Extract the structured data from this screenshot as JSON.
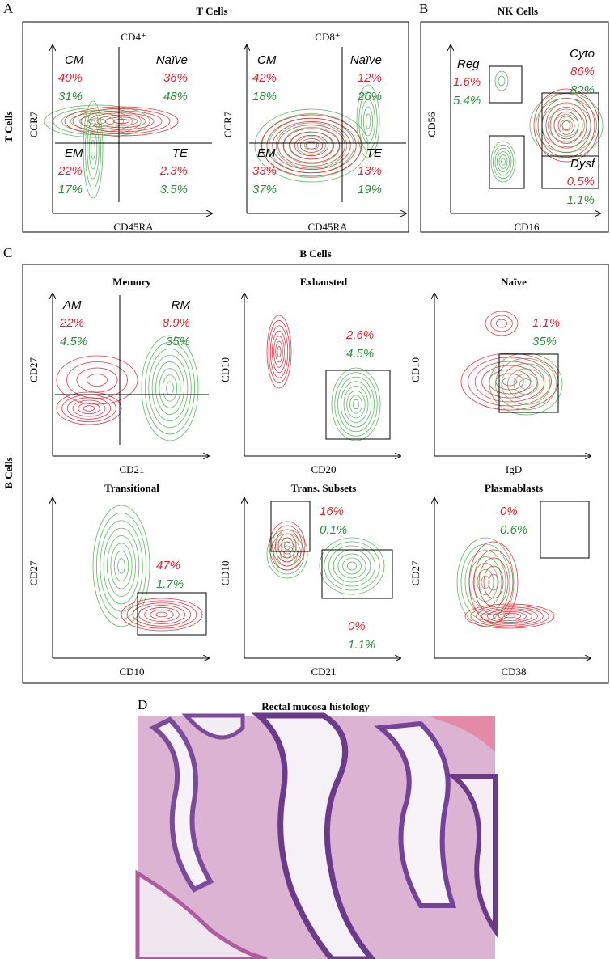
{
  "panel_a": {
    "label": "A",
    "title": "T Cells",
    "row_label": "T Cells",
    "plots": [
      {
        "heading": "CD4⁺",
        "y_axis": "CCR7",
        "x_axis": "CD45RA",
        "gates": [
          {
            "name": "CM",
            "values": [
              "40%",
              "31%"
            ]
          },
          {
            "name": "Naïve",
            "values": [
              "36%",
              "48%"
            ]
          },
          {
            "name": "EM",
            "values": [
              "22%",
              "17%"
            ]
          },
          {
            "name": "TE",
            "values": [
              "2.3%",
              "3.5%"
            ]
          }
        ]
      },
      {
        "heading": "CD8⁺",
        "y_axis": "CCR7",
        "x_axis": "CD45RA",
        "gates": [
          {
            "name": "CM",
            "values": [
              "42%",
              "18%"
            ]
          },
          {
            "name": "Naïve",
            "values": [
              "12%",
              "26%"
            ]
          },
          {
            "name": "EM",
            "values": [
              "33%",
              "37%"
            ]
          },
          {
            "name": "TE",
            "values": [
              "13%",
              "19%"
            ]
          }
        ]
      }
    ]
  },
  "panel_b": {
    "label": "B",
    "title": "NK Cells",
    "plots": [
      {
        "y_axis": "CD56",
        "x_axis": "CD16",
        "gates": [
          {
            "name": "Reg",
            "values": [
              "1.6%",
              "5.4%"
            ]
          },
          {
            "name": "Cyto",
            "values": [
              "86%",
              "82%"
            ]
          },
          {
            "name": "Dysf",
            "values": [
              "0.5%",
              "1.1%"
            ]
          }
        ]
      }
    ]
  },
  "panel_c": {
    "label": "C",
    "title": "B Cells",
    "row_label": "B Cells",
    "plots": [
      {
        "heading": "Memory",
        "y_axis": "CD27",
        "x_axis": "CD21",
        "gates": [
          {
            "name": "AM",
            "values": [
              "22%",
              "4.5%"
            ]
          },
          {
            "name": "RM",
            "values": [
              "8.9%",
              "35%"
            ]
          }
        ]
      },
      {
        "heading": "Exhausted",
        "y_axis": "CD10",
        "x_axis": "CD20",
        "gates": [
          {
            "values": [
              "2.6%",
              "4.5%"
            ]
          }
        ]
      },
      {
        "heading": "Naïve",
        "y_axis": "CD10",
        "x_axis": "IgD",
        "gates": [
          {
            "values": [
              "1.1%",
              "35%"
            ]
          }
        ]
      },
      {
        "heading": "Transitional",
        "y_axis": "CD27",
        "x_axis": "CD10",
        "gates": [
          {
            "values": [
              "47%",
              "1.7%"
            ]
          }
        ]
      },
      {
        "heading": "Trans. Subsets",
        "y_axis": "CD10",
        "x_axis": "CD21",
        "gates": [
          {
            "values": [
              "16%",
              "0.1%"
            ]
          },
          {
            "values": [
              "0%",
              "1.1%"
            ]
          }
        ]
      },
      {
        "heading": "Plasmablasts",
        "y_axis": "CD27",
        "x_axis": "CD38",
        "gates": [
          {
            "values": [
              "0%",
              "0.6%"
            ]
          }
        ]
      }
    ]
  },
  "panel_d": {
    "label": "D",
    "title": "Rectal mucosa histology"
  }
}
